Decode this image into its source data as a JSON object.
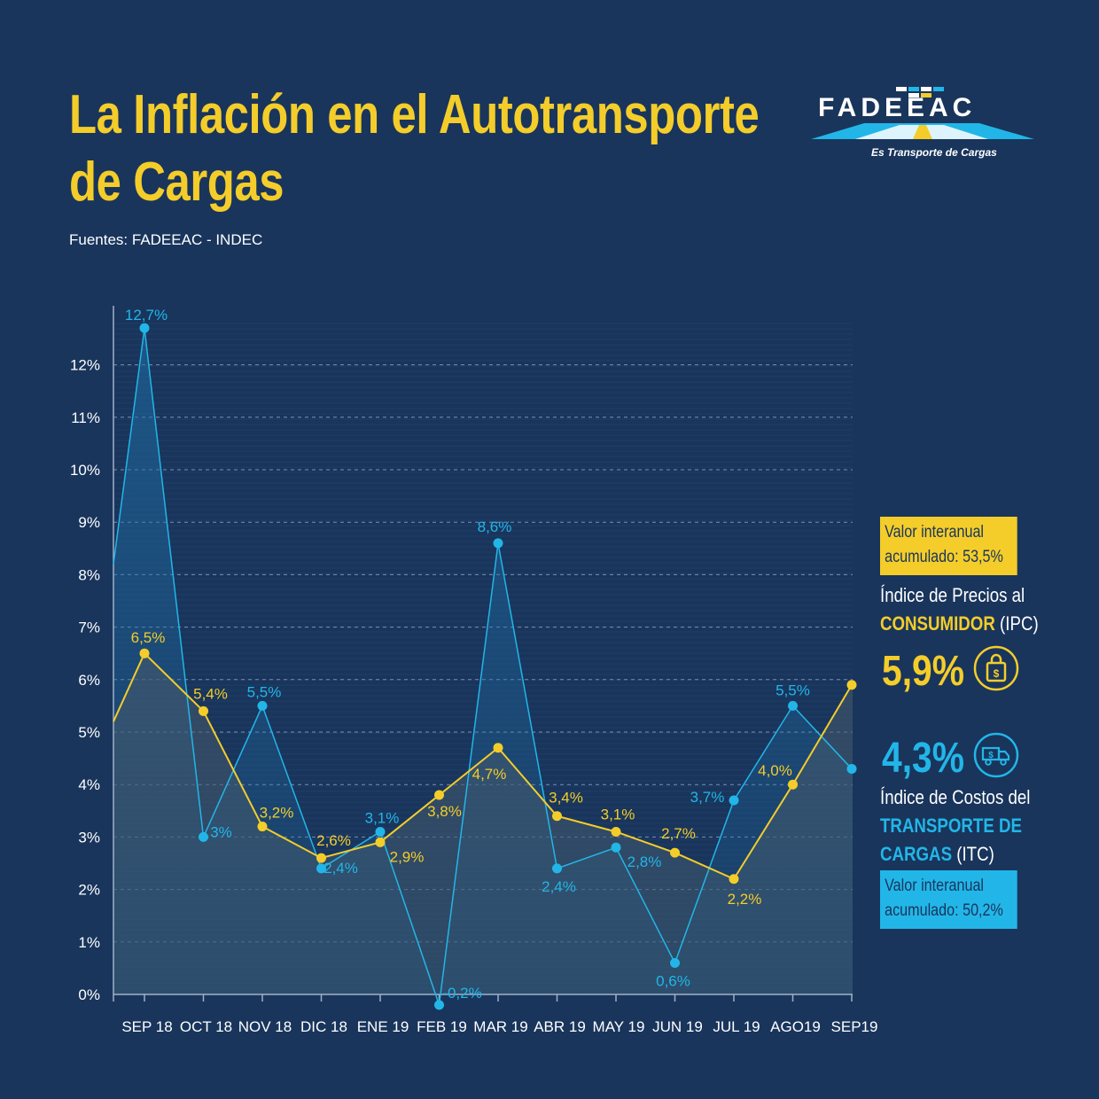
{
  "header": {
    "title_line1": "La Inflación en el Autotransporte",
    "title_line2": "de Cargas",
    "source": "Fuentes: FADEEAC - INDEC"
  },
  "logo": {
    "name": "FADEEAC",
    "tagline": "Es Transporte de Cargas"
  },
  "legend": {
    "ipc_box_line1": "Valor interanual",
    "ipc_box_line2": "acumulado: 53,5%",
    "ipc_name_line1": "Índice de Precios al",
    "ipc_name_bold": "CONSUMIDOR",
    "ipc_name_suffix": " (IPC)",
    "ipc_value": "5,9%",
    "itc_value": "4,3%",
    "itc_name_line1": "Índice de Costos del",
    "itc_name_bold1": "TRANSPORTE DE",
    "itc_name_bold2": "CARGAS",
    "itc_name_suffix": " (ITC)",
    "itc_box_line1": "Valor interanual",
    "itc_box_line2": "acumulado: 50,2%",
    "icons": [
      "shopping-bag-icon",
      "truck-icon"
    ]
  },
  "colors": {
    "background": "#19355c",
    "ipc": "#f4cd2a",
    "itc": "#22b6e8",
    "grid": "#7b8fb0"
  },
  "chart_data": {
    "type": "line",
    "categories": [
      "SEP 18",
      "OCT 18",
      "NOV 18",
      "DIC 18",
      "ENE 19",
      "FEB 19",
      "MAR 19",
      "ABR 19",
      "MAY 19",
      "JUN 19",
      "JUL 19",
      "AGO19",
      "SEP19"
    ],
    "yticks": [
      "0%",
      "1%",
      "2%",
      "3%",
      "4%",
      "5%",
      "6%",
      "7%",
      "8%",
      "9%",
      "10%",
      "11%",
      "12%"
    ],
    "ylim": [
      0,
      13
    ],
    "grid": true,
    "series": [
      {
        "name": "ITC",
        "values": [
          12.7,
          3.0,
          5.5,
          2.4,
          3.1,
          -0.2,
          8.6,
          2.4,
          2.8,
          0.6,
          3.7,
          5.5,
          4.3
        ],
        "labels": [
          "12,7%",
          "3%",
          "5,5%",
          "2,4%",
          "3,1%",
          "-0,2%",
          "8,6%",
          "2,4%",
          "2,8%",
          "0,6%",
          "3,7%",
          "5,5%",
          ""
        ]
      },
      {
        "name": "IPC",
        "values": [
          6.5,
          5.4,
          3.2,
          2.6,
          2.9,
          3.8,
          4.7,
          3.4,
          3.1,
          2.7,
          2.2,
          4.0,
          5.9
        ],
        "labels": [
          "6,5%",
          "5,4%",
          "3,2%",
          "2,6%",
          "2,9%",
          "3,8%",
          "4,7%",
          "3,4%",
          "3,1%",
          "2,7%",
          "2,2%",
          "4,0%",
          ""
        ]
      }
    ]
  }
}
